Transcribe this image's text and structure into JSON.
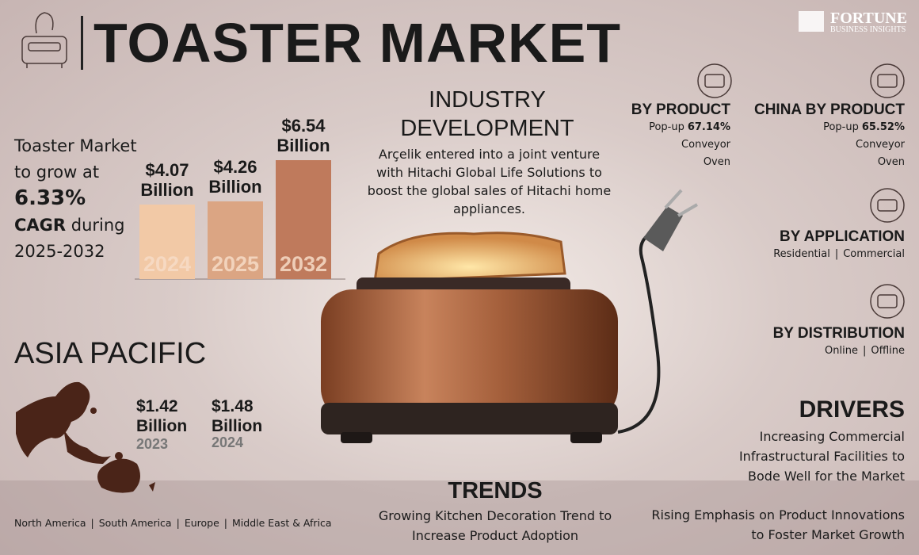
{
  "header": {
    "title": "TOASTER MARKET",
    "logo": "FORTUNE",
    "logo_subtitle": "BUSINESS INSIGHTS"
  },
  "growth": {
    "intro": "Toaster Market to grow at",
    "cagr": "6.33%",
    "cagr_label": "CAGR",
    "period": "during 2025-2032"
  },
  "chart_data": {
    "type": "bar",
    "categories": [
      "2024",
      "2025",
      "2032"
    ],
    "values": [
      4.07,
      4.26,
      6.54
    ],
    "value_labels": [
      "$4.07 Billion",
      "$4.26 Billion",
      "$6.54 Billion"
    ],
    "colors": [
      "#f2c9a6",
      "#dba583",
      "#bf7a5c"
    ]
  },
  "industry": {
    "title": "INDUSTRY DEVELOPMENT",
    "text": "Arçelik entered into a joint venture with Hitachi Global Life Solutions to boost the global sales of Hitachi home appliances."
  },
  "segments": [
    {
      "title": "BY PRODUCT",
      "items": [
        {
          "label": "Pop-up",
          "share": "67.14%"
        },
        {
          "label": "Conveyor"
        },
        {
          "label": "Oven"
        }
      ]
    },
    {
      "title": "CHINA BY PRODUCT",
      "items": [
        {
          "label": "Pop-up",
          "share": "65.52%"
        },
        {
          "label": "Conveyor"
        },
        {
          "label": "Oven"
        }
      ]
    },
    {
      "title": "BY APPLICATION",
      "items": [
        {
          "label": "Residential"
        },
        {
          "label": "Commercial"
        }
      ]
    },
    {
      "title": "BY DISTRIBUTION",
      "items": [
        {
          "label": "Online"
        },
        {
          "label": "Offline"
        }
      ]
    }
  ],
  "asia_pacific": {
    "title": "ASIA PACIFIC",
    "values": [
      {
        "value": "$1.42 Billion",
        "year": "2023"
      },
      {
        "value": "$1.48 Billion",
        "year": "2024"
      }
    ]
  },
  "drivers": {
    "title": "DRIVERS",
    "text": "Increasing Commercial Infrastructural Facilities to Bode Well for the Market"
  },
  "trends": {
    "title": "TRENDS",
    "text": "Growing Kitchen Decoration Trend to Increase Product Adoption"
  },
  "opportunity": {
    "text": "Rising Emphasis on Product Innovations to Foster Market Growth"
  },
  "regions": [
    "North America",
    "South America",
    "Europe",
    "Middle East & Africa"
  ]
}
